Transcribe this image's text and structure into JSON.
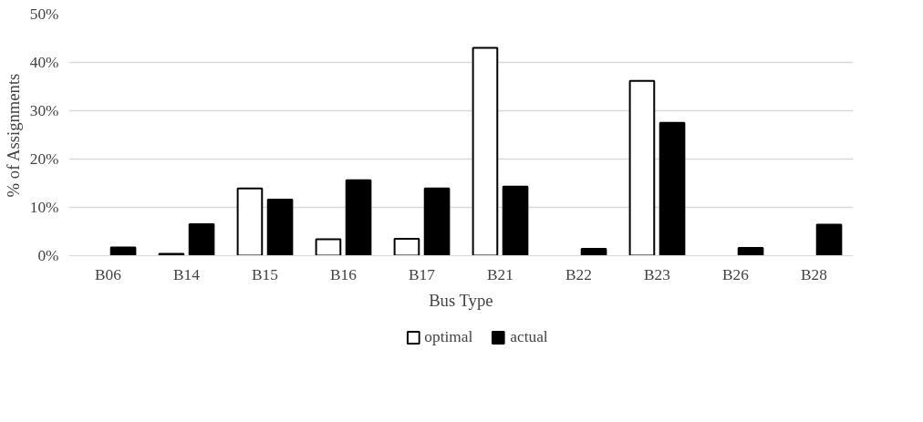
{
  "chart_data": {
    "type": "bar",
    "xlabel": "Bus Type",
    "ylabel": "% of Assignments",
    "categories": [
      "B06",
      "B14",
      "B15",
      "B16",
      "B17",
      "B21",
      "B22",
      "B23",
      "B26",
      "B28"
    ],
    "series": [
      {
        "name": "optimal",
        "color": "#ffffff",
        "values": [
          0,
          0.4,
          13.9,
          3.4,
          3.5,
          43.0,
          0,
          36.2,
          0,
          0
        ]
      },
      {
        "name": "actual",
        "color": "#000000",
        "values": [
          1.7,
          6.5,
          11.6,
          15.6,
          13.9,
          14.3,
          1.4,
          27.5,
          1.6,
          6.4
        ]
      }
    ],
    "ylim": [
      0,
      50
    ],
    "yticks": [
      {
        "value": 0,
        "label": "0%"
      },
      {
        "value": 10,
        "label": "10%"
      },
      {
        "value": 20,
        "label": "20%"
      },
      {
        "value": 30,
        "label": "30%"
      },
      {
        "value": 40,
        "label": "40%"
      },
      {
        "value": 50,
        "label": "50%"
      }
    ],
    "grid": "y",
    "legend": "bottom"
  }
}
